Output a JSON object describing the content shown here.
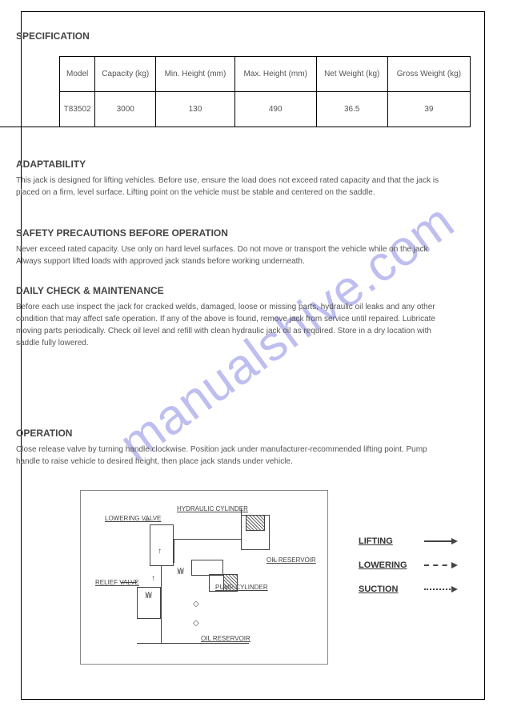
{
  "watermark": "manualshive.com",
  "headings": {
    "specification": "SPECIFICATION",
    "adaptability": "ADAPTABILITY",
    "safety": "SAFETY PRECAUTIONS BEFORE OPERATION",
    "daily": "DAILY CHECK & MAINTENANCE",
    "operation": "OPERATION"
  },
  "spec_table": {
    "headers": [
      "Model",
      "Capacity (kg)",
      "Min. Height (mm)",
      "Max. Height (mm)",
      "Net Weight (kg)",
      "Gross Weight (kg)"
    ],
    "row": [
      "T83502",
      "3000",
      "130",
      "490",
      "36.5",
      "39"
    ]
  },
  "bodies": {
    "adaptability": "This jack is designed for lifting vehicles. Before use, ensure the load does not exceed rated capacity and that the jack is placed on a firm, level surface. Lifting point on the vehicle must be stable and centered on the saddle.",
    "safety": "Never exceed rated capacity. Use only on hard level surfaces. Do not move or transport the vehicle while on the jack. Always support lifted loads with approved jack stands before working underneath.",
    "daily": "Before each use inspect the jack for cracked welds, damaged, loose or missing parts, hydraulic oil leaks and any other condition that may affect safe operation. If any of the above is found, remove jack from service until repaired. Lubricate moving parts periodically. Check oil level and refill with clean hydraulic jack oil as required. Store in a dry location with saddle fully lowered.",
    "operation": "Close release valve by turning handle clockwise. Position jack under manufacturer-recommended lifting point. Pump handle to raise vehicle to desired height, then place jack stands under vehicle."
  },
  "diagram": {
    "labels": {
      "hydraulic_cylinder": "HYDRAULIC CYLINDER",
      "lowering_valve": "LOWERING VALVE",
      "oil_reservoir": "OIL RESERVOIR",
      "relief_valve": "RELIEF VALVE",
      "pump_cylinder": "PUMP CYLINDER"
    }
  },
  "legend": {
    "lifting": "LIFTING",
    "lowering": "LOWERING",
    "suction": "SUCTION"
  }
}
